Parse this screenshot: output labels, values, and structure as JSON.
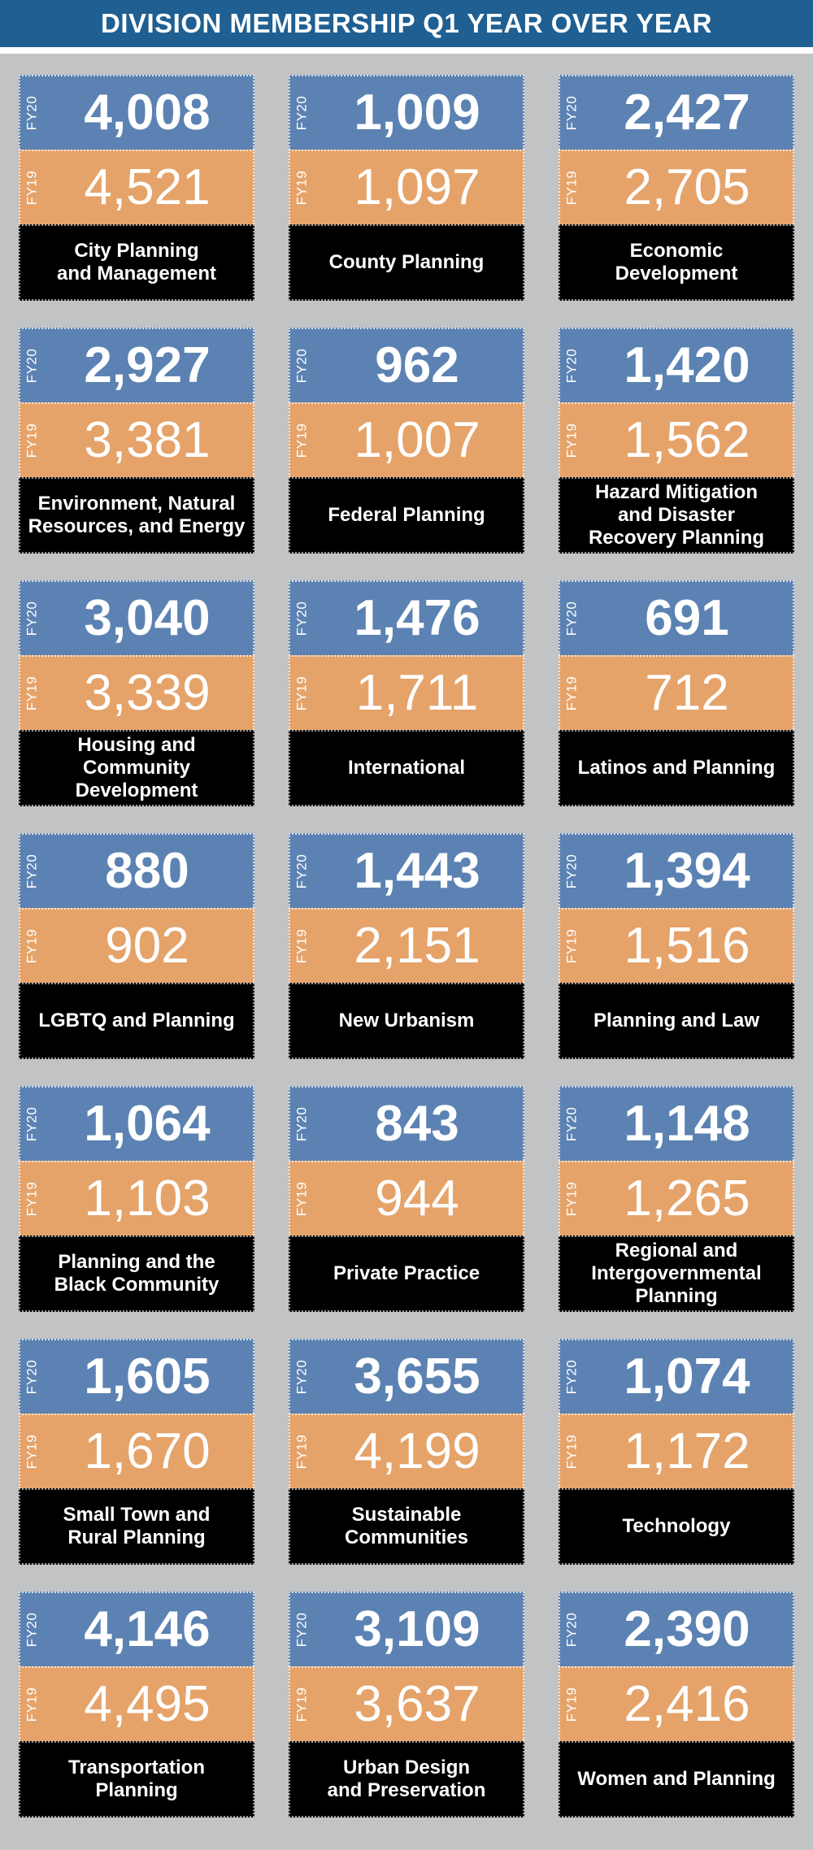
{
  "title": "DIVISION MEMBERSHIP Q1 YEAR OVER YEAR",
  "colors": {
    "header": "#1f5f92",
    "fy20": "#5b82b2",
    "fy19": "#e5a36a",
    "label_bg": "#000000",
    "page_bg": "#c2c3c5"
  },
  "chart_data": {
    "type": "table",
    "title": "DIVISION MEMBERSHIP Q1 YEAR OVER YEAR",
    "series_labels": [
      "FY20",
      "FY19"
    ],
    "divisions": [
      {
        "label": "City Planning\nand Management",
        "fy20": "4,008",
        "fy19": "4,521"
      },
      {
        "label": "County Planning",
        "fy20": "1,009",
        "fy19": "1,097"
      },
      {
        "label": "Economic\nDevelopment",
        "fy20": "2,427",
        "fy19": "2,705"
      },
      {
        "label": "Environment, Natural\nResources, and Energy",
        "fy20": "2,927",
        "fy19": "3,381"
      },
      {
        "label": "Federal Planning",
        "fy20": "962",
        "fy19": "1,007"
      },
      {
        "label": "Hazard Mitigation\nand Disaster\nRecovery Planning",
        "fy20": "1,420",
        "fy19": "1,562"
      },
      {
        "label": "Housing and\nCommunity\nDevelopment",
        "fy20": "3,040",
        "fy19": "3,339"
      },
      {
        "label": "International",
        "fy20": "1,476",
        "fy19": "1,711"
      },
      {
        "label": "Latinos and Planning",
        "fy20": "691",
        "fy19": "712"
      },
      {
        "label": "LGBTQ and Planning",
        "fy20": "880",
        "fy19": "902"
      },
      {
        "label": "New Urbanism",
        "fy20": "1,443",
        "fy19": "2,151"
      },
      {
        "label": "Planning and Law",
        "fy20": "1,394",
        "fy19": "1,516"
      },
      {
        "label": "Planning and the\nBlack Community",
        "fy20": "1,064",
        "fy19": "1,103"
      },
      {
        "label": "Private Practice",
        "fy20": "843",
        "fy19": "944"
      },
      {
        "label": "Regional and\nIntergovernmental\nPlanning",
        "fy20": "1,148",
        "fy19": "1,265"
      },
      {
        "label": "Small Town and\nRural Planning",
        "fy20": "1,605",
        "fy19": "1,670"
      },
      {
        "label": "Sustainable\nCommunities",
        "fy20": "3,655",
        "fy19": "4,199"
      },
      {
        "label": "Technology",
        "fy20": "1,074",
        "fy19": "1,172"
      },
      {
        "label": "Transportation\nPlanning",
        "fy20": "4,146",
        "fy19": "4,495"
      },
      {
        "label": "Urban Design\nand Preservation",
        "fy20": "3,109",
        "fy19": "3,637"
      },
      {
        "label": "Women and Planning",
        "fy20": "2,390",
        "fy19": "2,416"
      }
    ]
  }
}
